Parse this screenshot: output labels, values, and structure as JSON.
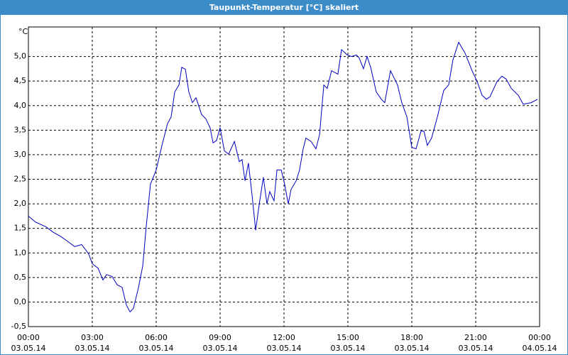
{
  "chart_data": {
    "type": "line",
    "title": "Taupunkt-Temperatur [°C] skaliert",
    "y_label": "°C",
    "grid": true,
    "xlim": [
      0,
      24
    ],
    "ylim": [
      -0.5,
      5.5
    ],
    "xticks": [
      {
        "value": 0,
        "label": "00:00",
        "sublabel": "03.05.14"
      },
      {
        "value": 3,
        "label": "03:00",
        "sublabel": "03.05.14"
      },
      {
        "value": 6,
        "label": "06:00",
        "sublabel": "03.05.14"
      },
      {
        "value": 9,
        "label": "09:00",
        "sublabel": "03.05.14"
      },
      {
        "value": 12,
        "label": "12:00",
        "sublabel": "03.05.14"
      },
      {
        "value": 15,
        "label": "15:00",
        "sublabel": "03.05.14"
      },
      {
        "value": 18,
        "label": "18:00",
        "sublabel": "03.05.14"
      },
      {
        "value": 21,
        "label": "21:00",
        "sublabel": "03.05.14"
      },
      {
        "value": 24,
        "label": "00:00",
        "sublabel": "04.05.14"
      }
    ],
    "yticks": [
      {
        "value": -0.5,
        "label": "-0,5"
      },
      {
        "value": 0,
        "label": "0,0"
      },
      {
        "value": 0.5,
        "label": "0,5"
      },
      {
        "value": 1,
        "label": "1,0"
      },
      {
        "value": 1.5,
        "label": "1,5"
      },
      {
        "value": 2,
        "label": "2,0"
      },
      {
        "value": 2.5,
        "label": "2,5"
      },
      {
        "value": 3,
        "label": "3,0"
      },
      {
        "value": 3.5,
        "label": "3,5"
      },
      {
        "value": 4,
        "label": "4,0"
      },
      {
        "value": 4.5,
        "label": "4,5"
      },
      {
        "value": 5,
        "label": "5,0"
      }
    ],
    "x": [
      0,
      0.33,
      0.83,
      1.17,
      1.5,
      1.83,
      2.17,
      2.5,
      2.83,
      3,
      3.27,
      3.5,
      3.67,
      3.93,
      4.17,
      4.4,
      4.6,
      4.77,
      4.93,
      5.17,
      5.37,
      5.53,
      5.73,
      6,
      6.27,
      6.53,
      6.7,
      6.87,
      7.07,
      7.2,
      7.37,
      7.53,
      7.7,
      7.87,
      8.13,
      8.33,
      8.53,
      8.67,
      8.83,
      9,
      9.2,
      9.4,
      9.67,
      9.9,
      10.03,
      10.17,
      10.33,
      10.5,
      10.67,
      10.83,
      11.03,
      11.2,
      11.33,
      11.53,
      11.67,
      11.87,
      12.03,
      12.2,
      12.33,
      12.57,
      12.73,
      12.9,
      13.03,
      13.27,
      13.5,
      13.67,
      13.87,
      14.03,
      14.23,
      14.53,
      14.7,
      14.97,
      15.17,
      15.4,
      15.53,
      15.73,
      15.9,
      16.07,
      16.33,
      16.57,
      16.73,
      17,
      17.33,
      17.53,
      17.77,
      18,
      18.2,
      18.43,
      18.57,
      18.73,
      18.93,
      19.2,
      19.5,
      19.73,
      19.93,
      20.2,
      20.5,
      20.83,
      21.07,
      21.3,
      21.5,
      21.67,
      22,
      22.23,
      22.43,
      22.67,
      23,
      23.23,
      23.6,
      23.9
    ],
    "series": [
      {
        "color": "#0000c0",
        "values": [
          1.75,
          1.63,
          1.53,
          1.42,
          1.34,
          1.24,
          1.13,
          1.17,
          0.98,
          0.78,
          0.69,
          0.45,
          0.56,
          0.52,
          0.35,
          0.3,
          -0.06,
          -0.2,
          -0.13,
          0.3,
          0.74,
          1.53,
          2.4,
          2.69,
          3.19,
          3.63,
          3.77,
          4.28,
          4.42,
          4.78,
          4.74,
          4.28,
          4.06,
          4.16,
          3.82,
          3.73,
          3.55,
          3.24,
          3.29,
          3.55,
          3.08,
          3.01,
          3.27,
          2.86,
          2.9,
          2.47,
          2.83,
          2.18,
          1.46,
          1.97,
          2.54,
          2.0,
          2.25,
          2.06,
          2.69,
          2.69,
          2.4,
          2.0,
          2.29,
          2.47,
          2.69,
          3.12,
          3.34,
          3.27,
          3.12,
          3.41,
          4.42,
          4.35,
          4.71,
          4.64,
          5.14,
          5.03,
          5.0,
          5.03,
          4.97,
          4.75,
          5.0,
          4.78,
          4.28,
          4.13,
          4.06,
          4.71,
          4.42,
          4.06,
          3.77,
          3.15,
          3.12,
          3.48,
          3.48,
          3.19,
          3.34,
          3.77,
          4.31,
          4.42,
          4.93,
          5.29,
          5.07,
          4.71,
          4.49,
          4.21,
          4.13,
          4.18,
          4.49,
          4.6,
          4.54,
          4.35,
          4.21,
          4.03,
          4.06,
          4.13
        ]
      }
    ]
  }
}
